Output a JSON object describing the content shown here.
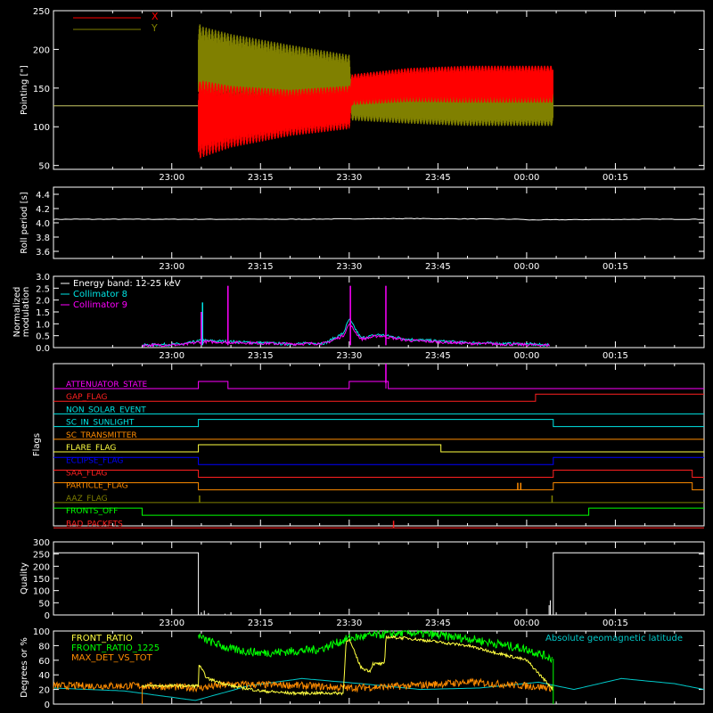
{
  "colors": {
    "background": "#000000",
    "axis": "#ffffff",
    "x_pointing": "#ff0000",
    "y_pointing": "#808000",
    "reference": "#c8c864",
    "collimator8": "#00e5e5",
    "collimator9": "#ff00ff",
    "front_ratio": "#ffff40",
    "front_ratio_1225": "#00ff00",
    "max_det": "#ff8c00",
    "geomag": "#00c8c8"
  },
  "time_axis": {
    "ticks": [
      "23:00",
      "23:15",
      "23:30",
      "23:45",
      "00:00",
      "00:15"
    ],
    "tick_minutes": [
      60,
      75,
      90,
      105,
      120,
      135
    ],
    "xlim_minutes": [
      40,
      150
    ]
  },
  "chart_data": [
    {
      "type": "line",
      "panel": "pointing",
      "ylabel": "Pointing [\"]",
      "ylim": [
        45,
        250
      ],
      "yticks": [
        50,
        100,
        150,
        200,
        250
      ],
      "legend": [
        "X",
        "Y"
      ],
      "legend_position": "top-left",
      "series": [
        {
          "name": "X",
          "x": [
            64.5,
            65,
            70,
            80,
            90,
            90.5,
            100,
            110,
            120,
            124.5
          ],
          "center": [
            107,
            110,
            113,
            118,
            125,
            148,
            154,
            155,
            155,
            155
          ],
          "amplitude": [
            50,
            50,
            40,
            30,
            28,
            20,
            22,
            24,
            24,
            24
          ]
        },
        {
          "name": "Y",
          "x": [
            64.5,
            65,
            70,
            80,
            90,
            90.5,
            100,
            110,
            120,
            124.5
          ],
          "center": [
            185,
            182,
            178,
            168,
            160,
            130,
            126,
            125,
            125,
            125
          ],
          "amplitude": [
            50,
            48,
            42,
            38,
            33,
            22,
            22,
            24,
            24,
            24
          ]
        }
      ],
      "baseline": 127
    },
    {
      "type": "line",
      "panel": "roll",
      "ylabel": "Roll period [s]",
      "ylim": [
        3.5,
        4.5
      ],
      "yticks": [
        3.6,
        3.8,
        4.0,
        4.2,
        4.4
      ],
      "series": [
        {
          "x": [
            40,
            60,
            80,
            100,
            119,
            120,
            140,
            150
          ],
          "values": [
            4.05,
            4.05,
            4.05,
            4.06,
            4.05,
            4.04,
            4.05,
            4.05
          ]
        }
      ]
    },
    {
      "type": "line",
      "panel": "modulation",
      "ylabel": "Normalized modulation",
      "ylim": [
        0,
        3.0
      ],
      "yticks": [
        0.0,
        0.5,
        1.0,
        1.5,
        2.0,
        2.5,
        3.0
      ],
      "legend": [
        "Energy band: 12-25 keV",
        "Collimator 8",
        "Collimator 9"
      ],
      "legend_position": "top-left",
      "series": [
        {
          "name": "Collimator 8",
          "x": [
            55,
            62,
            65,
            70,
            80,
            86,
            89,
            90,
            92,
            95,
            100,
            110,
            120,
            124
          ],
          "values": [
            0.1,
            0.15,
            0.3,
            0.25,
            0.15,
            0.2,
            0.6,
            1.2,
            0.4,
            0.55,
            0.35,
            0.2,
            0.15,
            0.1
          ]
        },
        {
          "name": "Collimator 9",
          "x": [
            55,
            62,
            65,
            70,
            80,
            86,
            89,
            90,
            92,
            95,
            100,
            110,
            120,
            124
          ],
          "values": [
            0.1,
            0.12,
            0.25,
            0.22,
            0.15,
            0.18,
            0.5,
            1.0,
            0.35,
            0.5,
            0.3,
            0.18,
            0.12,
            0.1
          ]
        }
      ],
      "spikes": [
        {
          "series": "Collimator 8",
          "x": 65.2,
          "value": 1.9
        },
        {
          "series": "Collimator 9",
          "x": 65,
          "value": 1.5
        },
        {
          "series": "Collimator 9",
          "x": 69.5,
          "value": 2.6
        },
        {
          "series": "Collimator 9",
          "x": 90.2,
          "value": 2.6
        },
        {
          "series": "Collimator 9",
          "x": 96.2,
          "value": 2.6
        }
      ]
    },
    {
      "type": "line",
      "panel": "flags",
      "ylabel": "Flags",
      "flags": [
        {
          "name": "ATTENUATOR_STATE",
          "color": "#ff00ff",
          "high": [
            [
              64.5,
              69.5
            ],
            [
              90,
              96.2
            ],
            [
              96.2,
              96.6
            ]
          ]
        },
        {
          "name": "GAP_FLAG",
          "color": "#ff2020",
          "high": [
            [
              121.5,
              150
            ]
          ]
        },
        {
          "name": "NON_SOLAR_EVENT",
          "color": "#00e5e5",
          "high": []
        },
        {
          "name": "SC_IN_SUNLIGHT",
          "color": "#00e5e5",
          "high": [
            [
              64.5,
              124.5
            ]
          ]
        },
        {
          "name": "SC_TRANSMITTER",
          "color": "#ff8c00",
          "high": []
        },
        {
          "name": "FLARE_FLAG",
          "color": "#ffff40",
          "high": [
            [
              64.5,
              105.5
            ]
          ]
        },
        {
          "name": "ECLIPSE_FLAG",
          "color": "#0000ff",
          "high": [
            [
              40,
              64.5
            ],
            [
              124.5,
              150
            ]
          ]
        },
        {
          "name": "SAA_FLAG",
          "color": "#ff2020",
          "high": [
            [
              40,
              64.5
            ],
            [
              124.5,
              148
            ]
          ]
        },
        {
          "name": "PARTICLE_FLAG",
          "color": "#ff8c00",
          "high": [
            [
              40,
              64.5
            ],
            [
              124.5,
              148
            ]
          ],
          "spikes": [
            118.5,
            119
          ]
        },
        {
          "name": "AAZ_FLAG",
          "color": "#808000",
          "high": [],
          "spikes": [
            64.7,
            124.3
          ]
        },
        {
          "name": "FRONTS_OFF",
          "color": "#00ff00",
          "high": [
            [
              40,
              55
            ],
            [
              130.5,
              150
            ]
          ]
        },
        {
          "name": "BAD_PACKETS",
          "color": "#ff2020",
          "high": [],
          "spikes": [
            97.5
          ]
        }
      ]
    },
    {
      "type": "line",
      "panel": "quality",
      "ylabel": "Quality",
      "ylim": [
        0,
        300
      ],
      "yticks": [
        0,
        50,
        100,
        150,
        200,
        250,
        300
      ],
      "series": [
        {
          "x": [
            40,
            64.5,
            64.5,
            124.5,
            124.5,
            150
          ],
          "values": [
            255,
            255,
            0,
            0,
            255,
            255
          ]
        }
      ]
    },
    {
      "type": "line",
      "panel": "ratios",
      "ylabel": "Degrees or %",
      "ylim": [
        0,
        100
      ],
      "yticks": [
        0,
        20,
        40,
        60,
        80,
        100
      ],
      "legend": [
        "FRONT_RATIO",
        "FRONT_RATIO_1225",
        "MAX_DET_VS_TOT"
      ],
      "legend_right": "Absolute geomagnetic latitude",
      "series": [
        {
          "name": "FRONT_RATIO",
          "x": [
            55,
            64.5,
            64.5,
            66,
            70,
            75,
            80,
            85,
            88,
            89,
            89.5,
            90,
            92,
            93.5,
            94,
            96,
            96.2,
            100,
            110,
            120,
            124.5
          ],
          "values": [
            25,
            25,
            55,
            35,
            25,
            18,
            15,
            15,
            15,
            15,
            88,
            88,
            50,
            45,
            55,
            55,
            92,
            90,
            80,
            60,
            20
          ]
        },
        {
          "name": "FRONT_RATIO_1225",
          "x": [
            64.5,
            65,
            70,
            75,
            80,
            85,
            90,
            95,
            100,
            110,
            120,
            124.5
          ],
          "values": [
            95,
            90,
            75,
            70,
            72,
            75,
            90,
            95,
            98,
            90,
            75,
            62
          ]
        },
        {
          "name": "MAX_DET_VS_TOT",
          "x": [
            40,
            55,
            64.5,
            70,
            80,
            90,
            100,
            110,
            120,
            124.5
          ],
          "values": [
            25,
            25,
            22,
            27,
            26,
            22,
            25,
            30,
            25,
            22
          ]
        },
        {
          "name": "Absolute geomagnetic latitude",
          "x": [
            40,
            52,
            64,
            73,
            82,
            92,
            102,
            112,
            122,
            128,
            136,
            145,
            150
          ],
          "values": [
            22,
            18,
            5,
            25,
            35,
            28,
            20,
            22,
            30,
            20,
            35,
            28,
            20
          ]
        }
      ]
    }
  ]
}
